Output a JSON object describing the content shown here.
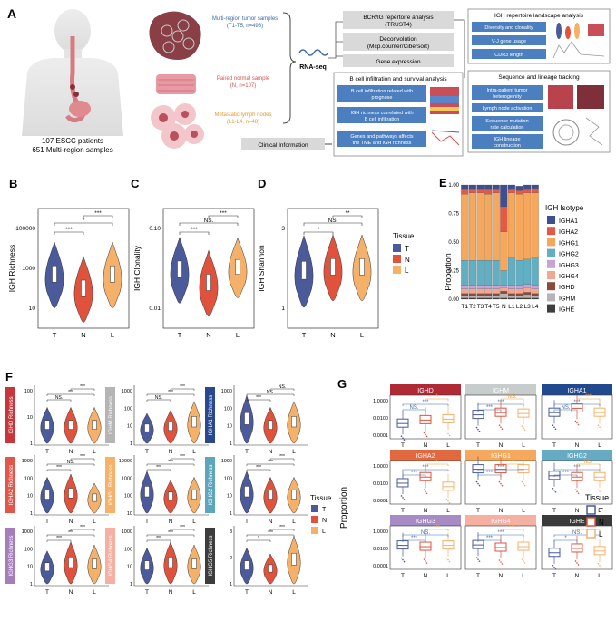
{
  "colors": {
    "T": "#4a5a9a",
    "N": "#e0523c",
    "L": "#f5b06a",
    "grey": "#d9d9d9",
    "blue": "#4b7fbf",
    "blueText": "#3a6aa8",
    "redText": "#d9534f",
    "orangeText": "#e39a3b"
  },
  "panelA": {
    "letter": "A",
    "patients": "107 ESCC patients",
    "samples": "651 Multi-region samples",
    "tumor": "Multi-region tumor samples",
    "tumor_n": "(T1-T5, n=496)",
    "normal": "Paired normal sample",
    "normal_n": "(N, n=107)",
    "lymph": "Metastatic lymph nodes",
    "lymph_n": "(L1-L4, n=48)",
    "rnaseq": "RNA-seq",
    "bcr1": "BCR/IG repertoire analysis",
    "bcr2": "(TRUST4)",
    "deconv1": "Deconvolution",
    "deconv2": "(Mcp.counter/Cibersort)",
    "geneexp": "Gene expression",
    "bcell_title": "B cell infiltration and survival analysis",
    "b1a": "B cell infiltration related with",
    "b1b": "prognose",
    "b2a": "IGH richness correlated with",
    "b2b": "B cell infiltration",
    "b3a": "Genes and pathways affects",
    "b3b": "the TME and IGH richness",
    "clinical": "Clinical Information",
    "land_title": "IGH repertoire landscape analysis",
    "l1": "Diversity and clonality",
    "l2": "V-J gene usage",
    "l3": "CDR3 length",
    "seq_title": "Sequence and lineage tracking",
    "s1a": "Intra-patient tumor",
    "s1b": "heterogeinity",
    "s2": "Lymph node activation",
    "s3a": "Sequence mutation",
    "s3b": "rate calculation",
    "s4a": "IGH lineage",
    "s4b": "construction"
  },
  "panelB": {
    "letter": "B",
    "ylabel": "IGH Richness",
    "ticks": [
      "100000",
      "1000",
      "10"
    ],
    "x": [
      "T",
      "N",
      "L"
    ],
    "sig": [
      "***",
      "*",
      "***"
    ]
  },
  "panelC": {
    "letter": "C",
    "ylabel": "IGH Clonality",
    "ticks": [
      "0.10",
      "0.01"
    ],
    "x": [
      "T",
      "N",
      "L"
    ],
    "sig": [
      "***",
      "NS.",
      "***"
    ]
  },
  "panelD": {
    "letter": "D",
    "ylabel": "IGH Shannon",
    "ticks": [
      "3",
      "1"
    ],
    "x": [
      "T",
      "N",
      "L"
    ],
    "sig": [
      "*",
      "NS.",
      "**"
    ]
  },
  "tissueLegend": {
    "title": "Tissue",
    "items": [
      "T",
      "N",
      "L"
    ]
  },
  "panelE": {
    "letter": "E",
    "ylabel": "Proportion",
    "ticks": [
      "1.00",
      "0.75",
      "0.50",
      "0.25",
      "0.00"
    ],
    "legend_title": "IGH Isotype",
    "chart_data": {
      "type": "bar",
      "categories": [
        "T1",
        "T2",
        "T3",
        "T4",
        "T5",
        "N",
        "L1",
        "L2",
        "L3",
        "L4"
      ],
      "ylabel": "Proportion",
      "ylim": [
        0,
        1
      ],
      "series": [
        {
          "name": "IGHE",
          "color": "#3d3d3d",
          "values": [
            0.01,
            0.01,
            0.01,
            0.01,
            0.01,
            0.01,
            0.01,
            0.01,
            0.01,
            0.01
          ]
        },
        {
          "name": "IGHM",
          "color": "#b5b5b5",
          "values": [
            0.02,
            0.02,
            0.02,
            0.02,
            0.02,
            0.04,
            0.02,
            0.02,
            0.03,
            0.02
          ]
        },
        {
          "name": "IGHD",
          "color": "#8b4a3a",
          "values": [
            0.02,
            0.02,
            0.02,
            0.02,
            0.02,
            0.02,
            0.02,
            0.02,
            0.02,
            0.02
          ]
        },
        {
          "name": "IGHG4",
          "color": "#f2a78f",
          "values": [
            0.04,
            0.04,
            0.04,
            0.04,
            0.04,
            0.03,
            0.04,
            0.04,
            0.04,
            0.04
          ]
        },
        {
          "name": "IGHG3",
          "color": "#c9a3d4",
          "values": [
            0.03,
            0.03,
            0.03,
            0.03,
            0.03,
            0.02,
            0.03,
            0.03,
            0.03,
            0.03
          ]
        },
        {
          "name": "IGHG2",
          "color": "#62afc4",
          "values": [
            0.22,
            0.22,
            0.22,
            0.22,
            0.22,
            0.13,
            0.24,
            0.22,
            0.22,
            0.24
          ]
        },
        {
          "name": "IGHG1",
          "color": "#f5a85c",
          "values": [
            0.58,
            0.59,
            0.59,
            0.58,
            0.59,
            0.34,
            0.57,
            0.58,
            0.58,
            0.57
          ]
        },
        {
          "name": "IGHA2",
          "color": "#e35a44",
          "values": [
            0.04,
            0.03,
            0.03,
            0.04,
            0.03,
            0.22,
            0.03,
            0.03,
            0.03,
            0.04
          ]
        },
        {
          "name": "IGHA1",
          "color": "#3e4f8f",
          "values": [
            0.04,
            0.04,
            0.04,
            0.04,
            0.04,
            0.19,
            0.04,
            0.04,
            0.04,
            0.03
          ]
        }
      ]
    }
  },
  "panelF": {
    "letter": "F",
    "x": [
      "T",
      "N",
      "L"
    ],
    "panels": [
      {
        "label": "IGHD Richness",
        "color": "#c8363b",
        "ticks": [
          "100",
          "10",
          "1"
        ],
        "sig": [
          "NS.",
          "***",
          "***"
        ]
      },
      {
        "label": "IGHM Richness",
        "color": "#b5b5b5",
        "ticks": [
          "1000",
          "100",
          "10",
          "1"
        ],
        "sig": [
          "NS.",
          "***",
          "***"
        ]
      },
      {
        "label": "IGHA1 Richness",
        "color": "#28498f",
        "ticks": [
          "1000",
          "100",
          "10",
          "1"
        ],
        "sig": [
          "***",
          "NS.",
          "NS."
        ]
      },
      {
        "label": "IGHA2 Richness",
        "color": "#e1574a",
        "ticks": [
          "1000",
          "100",
          "10",
          "1"
        ],
        "sig": [
          "***",
          "NS.",
          "***"
        ]
      },
      {
        "label": "IGHG1 Richness",
        "color": "#f6b26b",
        "ticks": [
          "10000",
          "1000",
          "100",
          "10"
        ],
        "sig": [
          "***",
          "***",
          "***"
        ]
      },
      {
        "label": "IGHG2 Richness",
        "color": "#5ea6bb",
        "ticks": [
          "1000",
          "100",
          "10",
          "1"
        ],
        "sig": [
          "***",
          "***",
          "***"
        ]
      },
      {
        "label": "IGHG3 Richness",
        "color": "#a57dba",
        "ticks": [
          "1000",
          "100",
          "10",
          "1"
        ],
        "sig": [
          "***",
          "***",
          "***"
        ]
      },
      {
        "label": "IGHG4 Richness",
        "color": "#f6b0a1",
        "ticks": [
          "1000",
          "100",
          "10",
          "1"
        ],
        "sig": [
          "***",
          "***",
          "***"
        ]
      },
      {
        "label": "IGHG5 Richness",
        "color": "#3d3d3d",
        "ticks": [
          "3",
          "2",
          "1"
        ],
        "sig": [
          "*",
          "***",
          "***"
        ]
      }
    ]
  },
  "panelG": {
    "letter": "G",
    "ylabel": "Proportion",
    "x": [
      "T",
      "N",
      "L"
    ],
    "panels": [
      {
        "label": "IGHD",
        "color": "#b02a36",
        "ticks": [
          "1.0000",
          "0.0100",
          "0.0001"
        ],
        "sig": [
          "NS.",
          "***",
          "*"
        ]
      },
      {
        "label": "IGHM",
        "color": "#c7cccc",
        "ticks": [
          "1.0000",
          "0.0100",
          "0.0001"
        ],
        "sig": [
          "***",
          "***",
          "NS."
        ]
      },
      {
        "label": "IGHA1",
        "color": "#21498d",
        "ticks": [
          "1.0000",
          "0.0100",
          "0.0001"
        ],
        "sig": [
          "NS.",
          "***",
          "***"
        ]
      },
      {
        "label": "IGHA2",
        "color": "#e2683f",
        "ticks": [
          "1.0000",
          "0.0100",
          "0.0001"
        ],
        "sig": [
          "***",
          "***",
          "*"
        ]
      },
      {
        "label": "IGHG1",
        "color": "#f6a95e",
        "ticks": [
          "1.0000",
          "0.0100",
          "0.0001"
        ],
        "sig": [
          "***",
          "***",
          "***"
        ]
      },
      {
        "label": "IGHG2",
        "color": "#66aac3",
        "ticks": [
          "1.0000",
          "0.0100",
          "0.0001"
        ],
        "sig": [
          "***",
          "***",
          "NS."
        ]
      },
      {
        "label": "IGHG3",
        "color": "#a68bc4",
        "ticks": [
          "1.0000",
          "0.0100",
          "0.0001"
        ],
        "sig": [
          "***",
          "NS.",
          "***"
        ]
      },
      {
        "label": "IGHG4",
        "color": "#f6b0a2",
        "ticks": [
          "1.0000",
          "0.0100",
          "0.0001"
        ],
        "sig": [
          "***",
          "***",
          "***"
        ]
      },
      {
        "label": "IGHE",
        "color": "#3a3a3a",
        "ticks": [
          "1.0000",
          "0.0100",
          "0.0001"
        ],
        "sig": [
          "*",
          "NS.",
          "***"
        ]
      }
    ]
  }
}
